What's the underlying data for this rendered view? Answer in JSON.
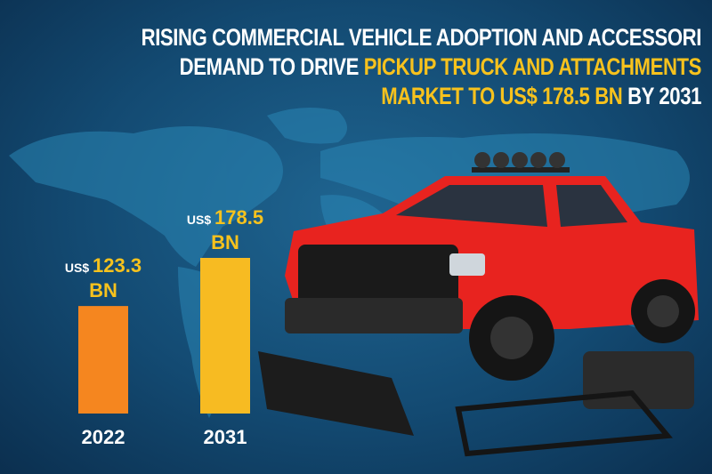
{
  "title": {
    "line1": "RISING COMMERCIAL VEHICLE ADOPTION AND ACCESSORI",
    "line2_white": "DEMAND TO DRIVE ",
    "line2_yellow": "PICKUP TRUCK AND ATTACHMENTS",
    "line3_yellow": "MARKET TO US$ 178.5 BN",
    "line3_white": " BY 2031"
  },
  "colors": {
    "background": "#134a72",
    "highlight": "#f7c21d",
    "bar_2022": "#f5861f",
    "bar_2031": "#f7bb22",
    "truck": "#e8231f"
  },
  "chart_data": {
    "type": "bar",
    "categories": [
      "2022",
      "2031"
    ],
    "values": [
      123.3,
      178.5
    ],
    "unit_prefix": "US$",
    "unit_suffix": "BN",
    "data_labels": [
      {
        "prefix": "US$",
        "value": "123.3",
        "suffix": "BN"
      },
      {
        "prefix": "US$",
        "value": "178.5",
        "suffix": "BN"
      }
    ],
    "bar_colors": [
      "#f5861f",
      "#f7bb22"
    ],
    "grid": false,
    "legend": "none"
  }
}
